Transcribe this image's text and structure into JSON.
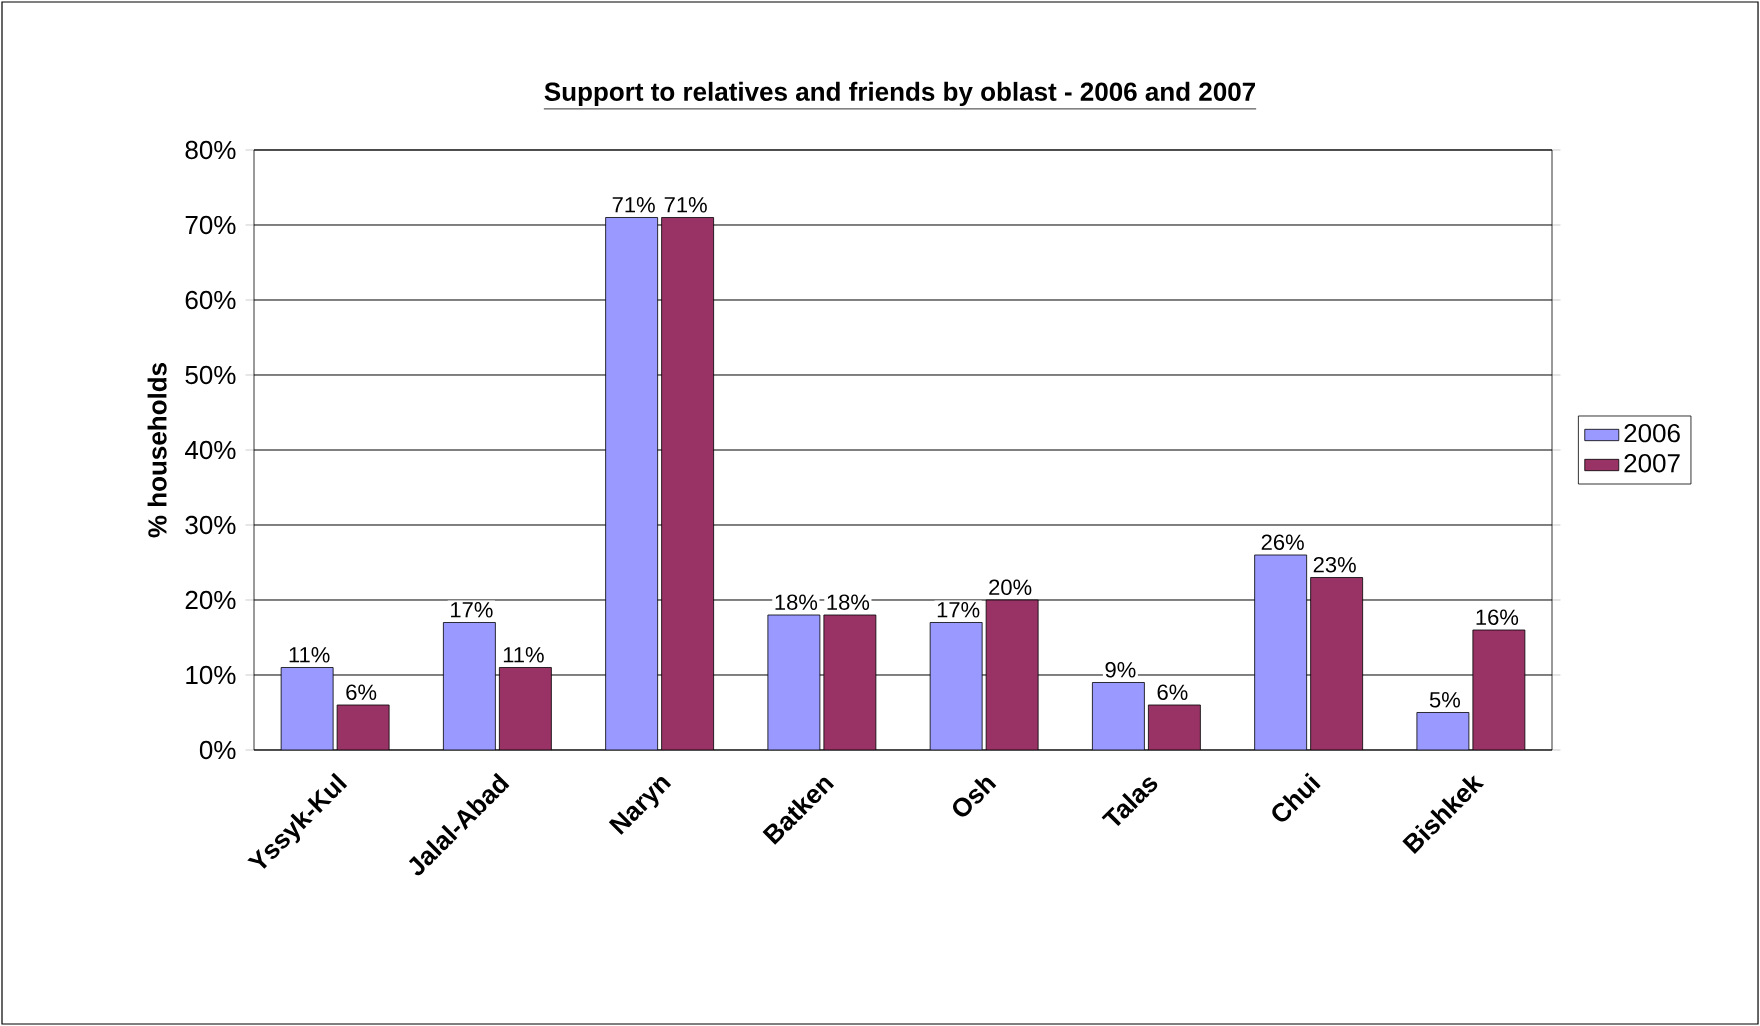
{
  "chart_data": {
    "type": "bar",
    "title": "Support to relatives and friends by oblast - 2006 and 2007",
    "ylabel": "% households",
    "categories": [
      "Yssyk-Kul",
      "Jalal-Abad",
      "Naryn",
      "Batken",
      "Osh",
      "Talas",
      "Chui",
      "Bishkek"
    ],
    "series": [
      {
        "name": "2006",
        "color": "#9999ff",
        "values": [
          11,
          17,
          71,
          18,
          17,
          9,
          26,
          5
        ],
        "value_labels": [
          "11%",
          "17%",
          "71%",
          "18%",
          "17%",
          "9%",
          "26%",
          "5%"
        ]
      },
      {
        "name": "2007",
        "color": "#993366",
        "values": [
          6,
          11,
          71,
          18,
          20,
          6,
          23,
          16
        ],
        "value_labels": [
          "6%",
          "11%",
          "71%",
          "18%",
          "20%",
          "6%",
          "23%",
          "16%"
        ]
      }
    ],
    "ylim": [
      0,
      80
    ],
    "yticks": [
      {
        "value": 0,
        "label": "0%"
      },
      {
        "value": 10,
        "label": "10%"
      },
      {
        "value": 20,
        "label": "20%"
      },
      {
        "value": 30,
        "label": "30%"
      },
      {
        "value": 40,
        "label": "40%"
      },
      {
        "value": 50,
        "label": "50%"
      },
      {
        "value": 60,
        "label": "60%"
      },
      {
        "value": 70,
        "label": "70%"
      },
      {
        "value": 80,
        "label": "80%"
      }
    ],
    "grid": "y",
    "legend": "right"
  }
}
